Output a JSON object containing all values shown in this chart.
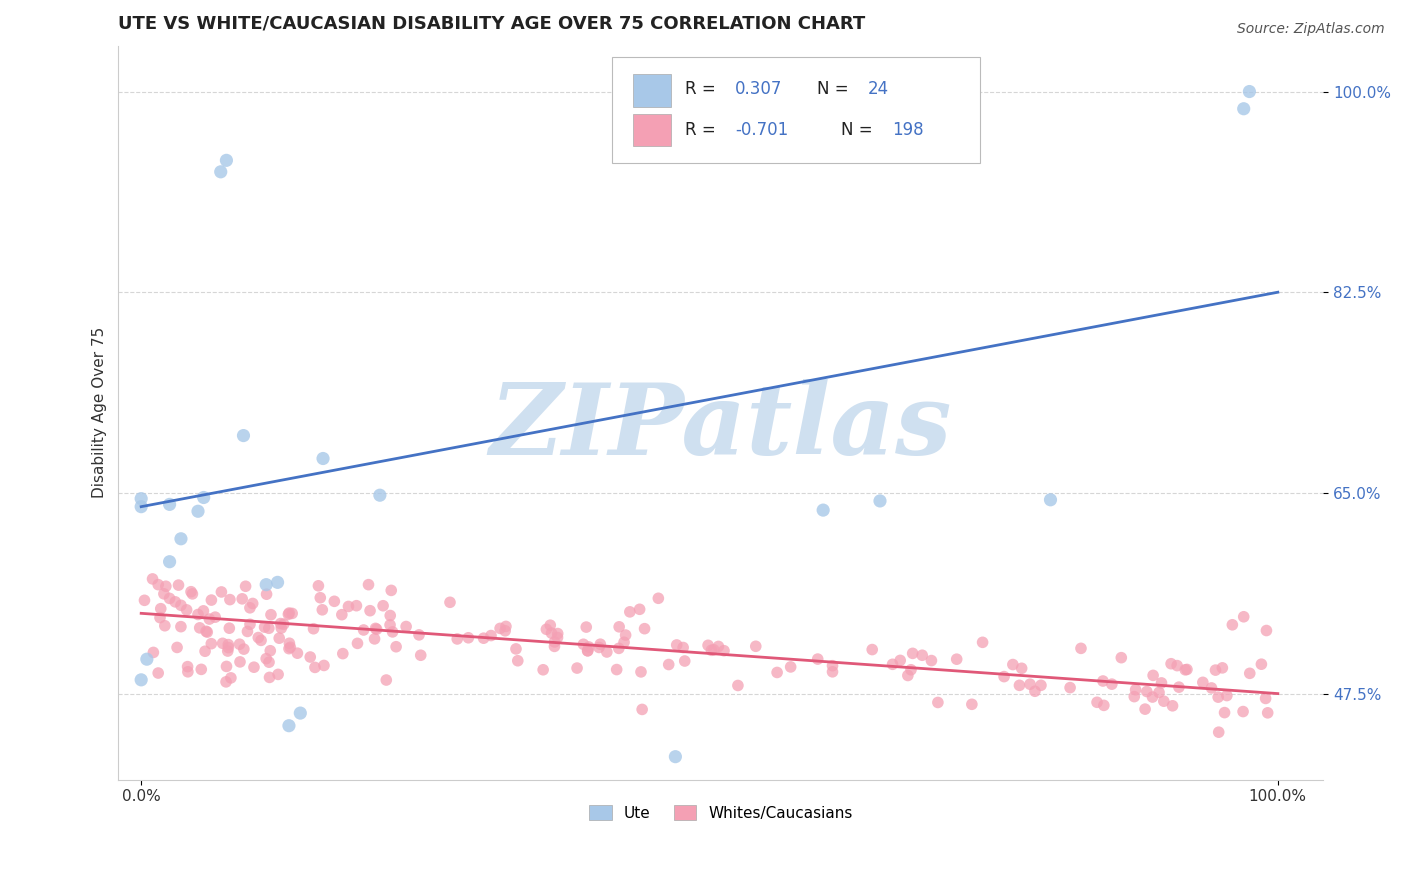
{
  "title": "UTE VS WHITE/CAUCASIAN DISABILITY AGE OVER 75 CORRELATION CHART",
  "source": "Source: ZipAtlas.com",
  "ylabel": "Disability Age Over 75",
  "bg_color": "#ffffff",
  "grid_color": "#cccccc",
  "watermark": "ZIPatlas",
  "watermark_color": "#cfe0f0",
  "legend_R_ute": "0.307",
  "legend_N_ute": "24",
  "legend_R_white": "-0.701",
  "legend_N_white": "198",
  "ute_color": "#a8c8e8",
  "white_color": "#f4a0b4",
  "ute_line_color": "#4472c4",
  "white_line_color": "#e05878",
  "ytick_vals": [
    0.475,
    0.65,
    0.825,
    1.0
  ],
  "ytick_labels": [
    "47.5%",
    "65.0%",
    "82.5%",
    "100.0%"
  ],
  "xtick_vals": [
    0.0,
    1.0
  ],
  "xtick_labels": [
    "0.0%",
    "100.0%"
  ],
  "xlim": [
    -0.02,
    1.04
  ],
  "ylim": [
    0.4,
    1.04
  ],
  "blue_line_x": [
    0.0,
    1.0
  ],
  "blue_line_y": [
    0.638,
    0.825
  ],
  "pink_line_x": [
    0.0,
    1.0
  ],
  "pink_line_y": [
    0.545,
    0.475
  ],
  "title_fontsize": 13,
  "axis_label_fontsize": 11,
  "tick_fontsize": 11,
  "source_fontsize": 10
}
